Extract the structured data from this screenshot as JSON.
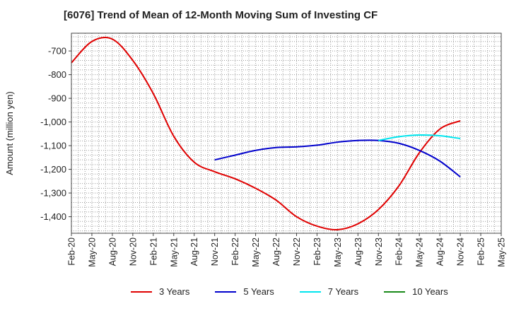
{
  "chart_data": {
    "type": "line",
    "title": "[6076]  Trend of Mean of 12-Month Moving Sum of Investing CF",
    "ylabel": "Amount (million yen)",
    "xlabel": "",
    "categories": [
      "Feb-20",
      "May-20",
      "Aug-20",
      "Nov-20",
      "Feb-21",
      "May-21",
      "Aug-21",
      "Nov-21",
      "Feb-22",
      "May-22",
      "Aug-22",
      "Nov-22",
      "Feb-23",
      "May-23",
      "Aug-23",
      "Nov-23",
      "Feb-24",
      "May-24",
      "Aug-24",
      "Nov-24",
      "Feb-25",
      "May-25"
    ],
    "yticks": [
      -700,
      -800,
      -900,
      -1000,
      -1100,
      -1200,
      -1300,
      -1400
    ],
    "ytick_labels": [
      "-700",
      "-800",
      "-900",
      "-1,000",
      "-1,100",
      "-1,200",
      "-1,300",
      "-1,400"
    ],
    "ylim": [
      -1470,
      -625
    ],
    "grid": true,
    "legend_position": "bottom",
    "series": [
      {
        "name": "3 Years",
        "color": "#e00000",
        "x": [
          "Feb-20",
          "May-20",
          "Aug-20",
          "Nov-20",
          "Feb-21",
          "May-21",
          "Aug-21",
          "Nov-21",
          "Feb-22",
          "May-22",
          "Aug-22",
          "Nov-22",
          "Feb-23",
          "May-23",
          "Aug-23",
          "Nov-23",
          "Feb-24",
          "May-24",
          "Aug-24",
          "Nov-24"
        ],
        "values": [
          -750,
          -660,
          -650,
          -740,
          -880,
          -1060,
          -1170,
          -1210,
          -1240,
          -1280,
          -1330,
          -1400,
          -1440,
          -1455,
          -1430,
          -1370,
          -1270,
          -1130,
          -1030,
          -995
        ]
      },
      {
        "name": "5 Years",
        "color": "#0000cc",
        "x": [
          "Nov-21",
          "Feb-22",
          "May-22",
          "Aug-22",
          "Nov-22",
          "Feb-23",
          "May-23",
          "Aug-23",
          "Nov-23",
          "Feb-24",
          "May-24",
          "Aug-24",
          "Nov-24"
        ],
        "values": [
          -1160,
          -1140,
          -1120,
          -1108,
          -1105,
          -1098,
          -1085,
          -1078,
          -1078,
          -1090,
          -1120,
          -1165,
          -1232
        ]
      },
      {
        "name": "7 Years",
        "color": "#00e5ee",
        "x": [
          "Nov-23",
          "Feb-24",
          "May-24",
          "Aug-24",
          "Nov-24"
        ],
        "values": [
          -1078,
          -1062,
          -1055,
          -1058,
          -1070
        ]
      },
      {
        "name": "10 Years",
        "color": "#1a8a1a",
        "x": [],
        "values": []
      }
    ]
  }
}
